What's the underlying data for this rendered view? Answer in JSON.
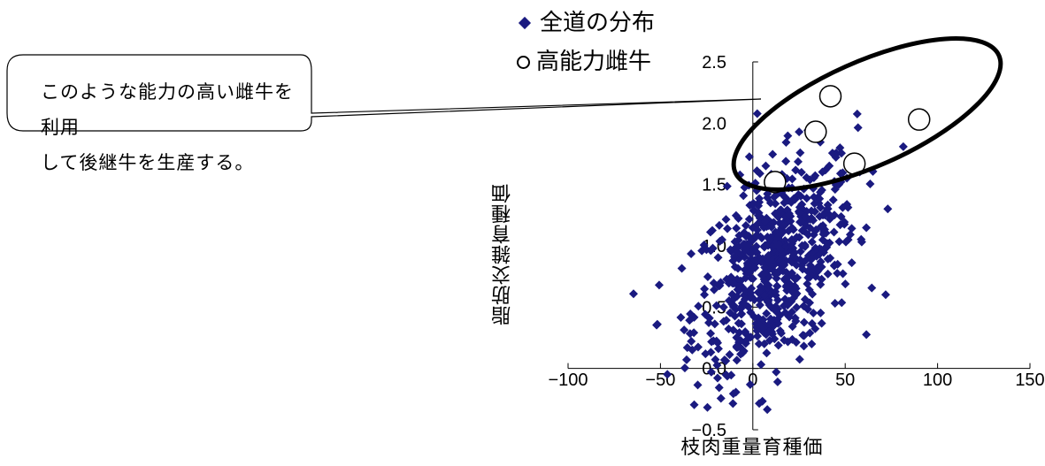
{
  "chart_data": {
    "type": "scatter",
    "title": "",
    "xlabel": "枝肉重量育種価",
    "ylabel": "脂肪交雑育種価",
    "xlim": [
      -100,
      150
    ],
    "ylim": [
      -0.5,
      2.5
    ],
    "xticks": [
      "-100",
      "-50",
      "0",
      "50",
      "100",
      "150"
    ],
    "yticks": [
      "-0.5",
      "0.0",
      "0.5",
      "1.0",
      "1.5",
      "2.0",
      "2.5"
    ],
    "grid": false,
    "legend_position": "top",
    "series": [
      {
        "name": "全道の分布",
        "marker": "diamond",
        "color": "#1a1a80",
        "approx_point_count": 700,
        "x_mean": 12,
        "x_sd": 22,
        "y_mean": 0.85,
        "y_sd": 0.45,
        "correlation": 0.45
      },
      {
        "name": "高能力雌牛",
        "marker": "circle",
        "color": "#ffffff",
        "points": [
          [
            12,
            1.52
          ],
          [
            34,
            1.93
          ],
          [
            42,
            2.22
          ],
          [
            55,
            1.67
          ],
          [
            90,
            2.03
          ]
        ]
      }
    ],
    "annotations": [
      {
        "type": "ellipse",
        "label": "highlight-high-ability-cows"
      },
      {
        "type": "callout",
        "text": [
          "このような能力の高い雌牛を利用",
          "して後継牛を生産する。"
        ]
      }
    ]
  },
  "legend": {
    "items": [
      {
        "label": "全道の分布",
        "icon": "diamond-marker-icon"
      },
      {
        "label": "高能力雌牛",
        "icon": "circle-marker-icon"
      }
    ]
  },
  "callout": {
    "line1": "このような能力の高い雌牛を利用",
    "line2": "して後継牛を生産する。"
  }
}
